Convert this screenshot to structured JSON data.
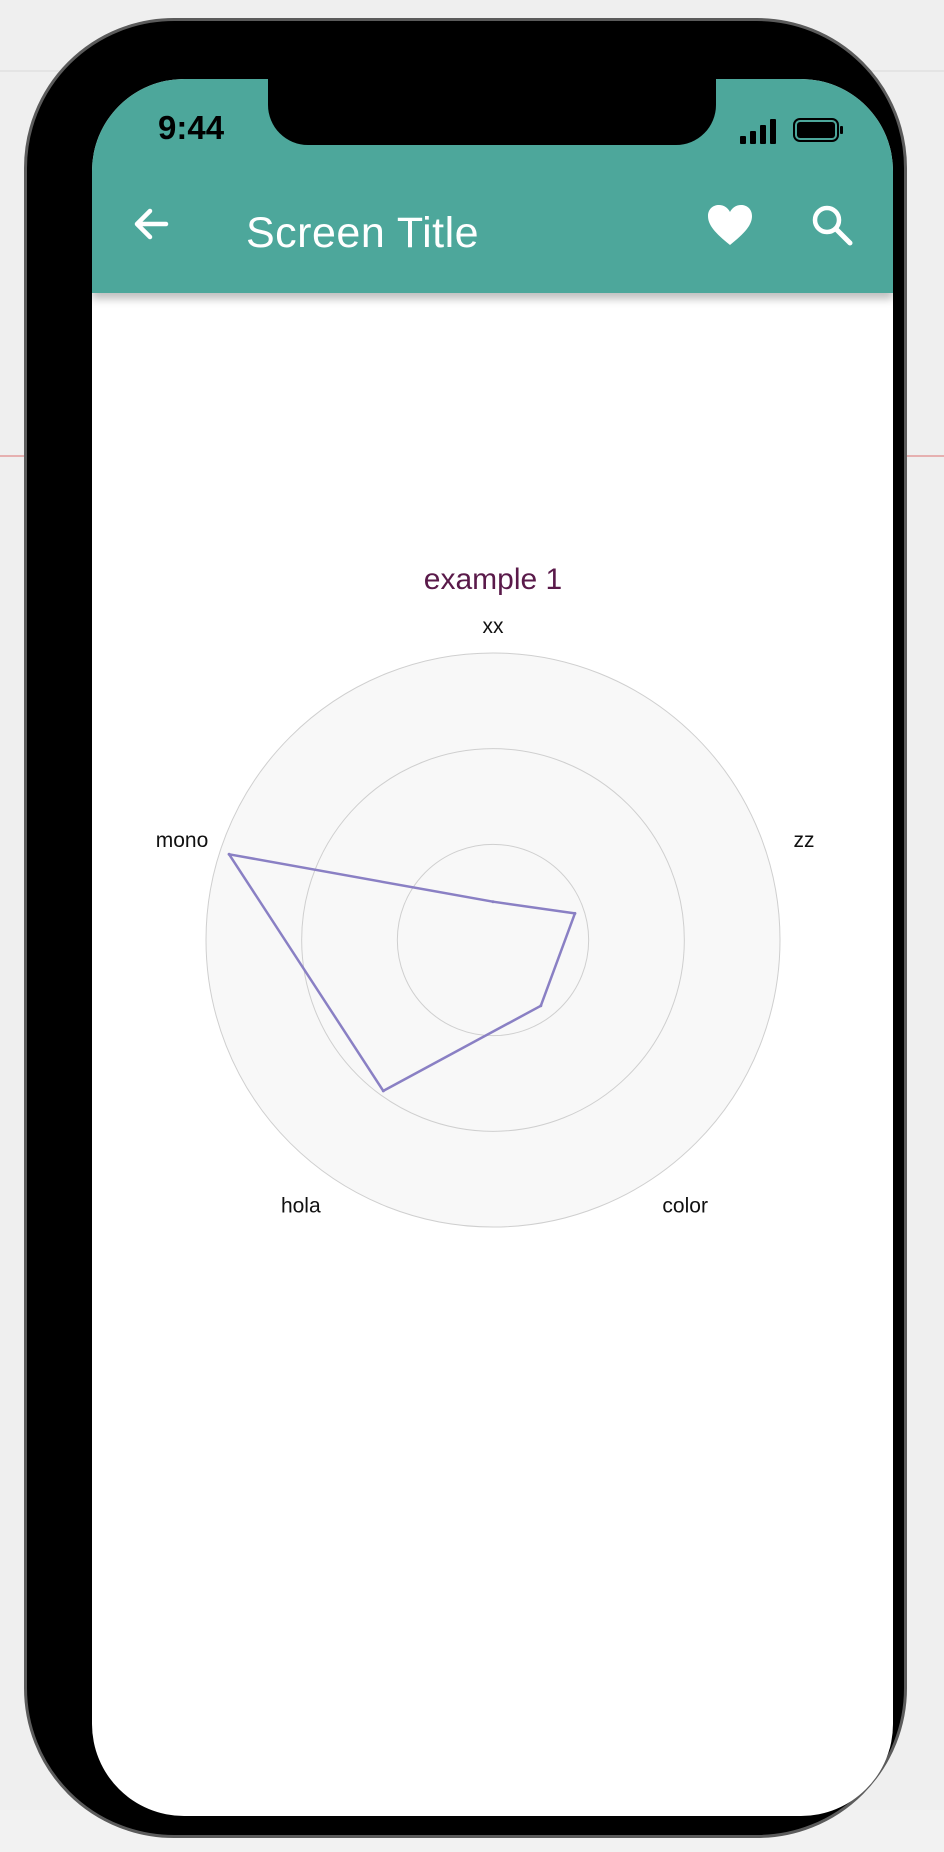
{
  "status_bar": {
    "time": "9:44"
  },
  "app_bar": {
    "title": "Screen Title",
    "icons": [
      "back-arrow-icon",
      "heart-icon",
      "search-icon"
    ],
    "color": "#4da79b"
  },
  "chart_data": {
    "type": "radar",
    "title": "example 1",
    "axes": [
      "xx",
      "zz",
      "color",
      "hola",
      "mono"
    ],
    "rings": 3,
    "rmax": 3,
    "series": [
      {
        "values": [
          0.4,
          0.9,
          0.85,
          1.95,
          2.9
        ],
        "color": "#8a80c4"
      }
    ]
  },
  "colors": {
    "title": "#5a1a4a",
    "grid_fill": "#f8f8f8",
    "grid_stroke": "#cfcfcf"
  }
}
